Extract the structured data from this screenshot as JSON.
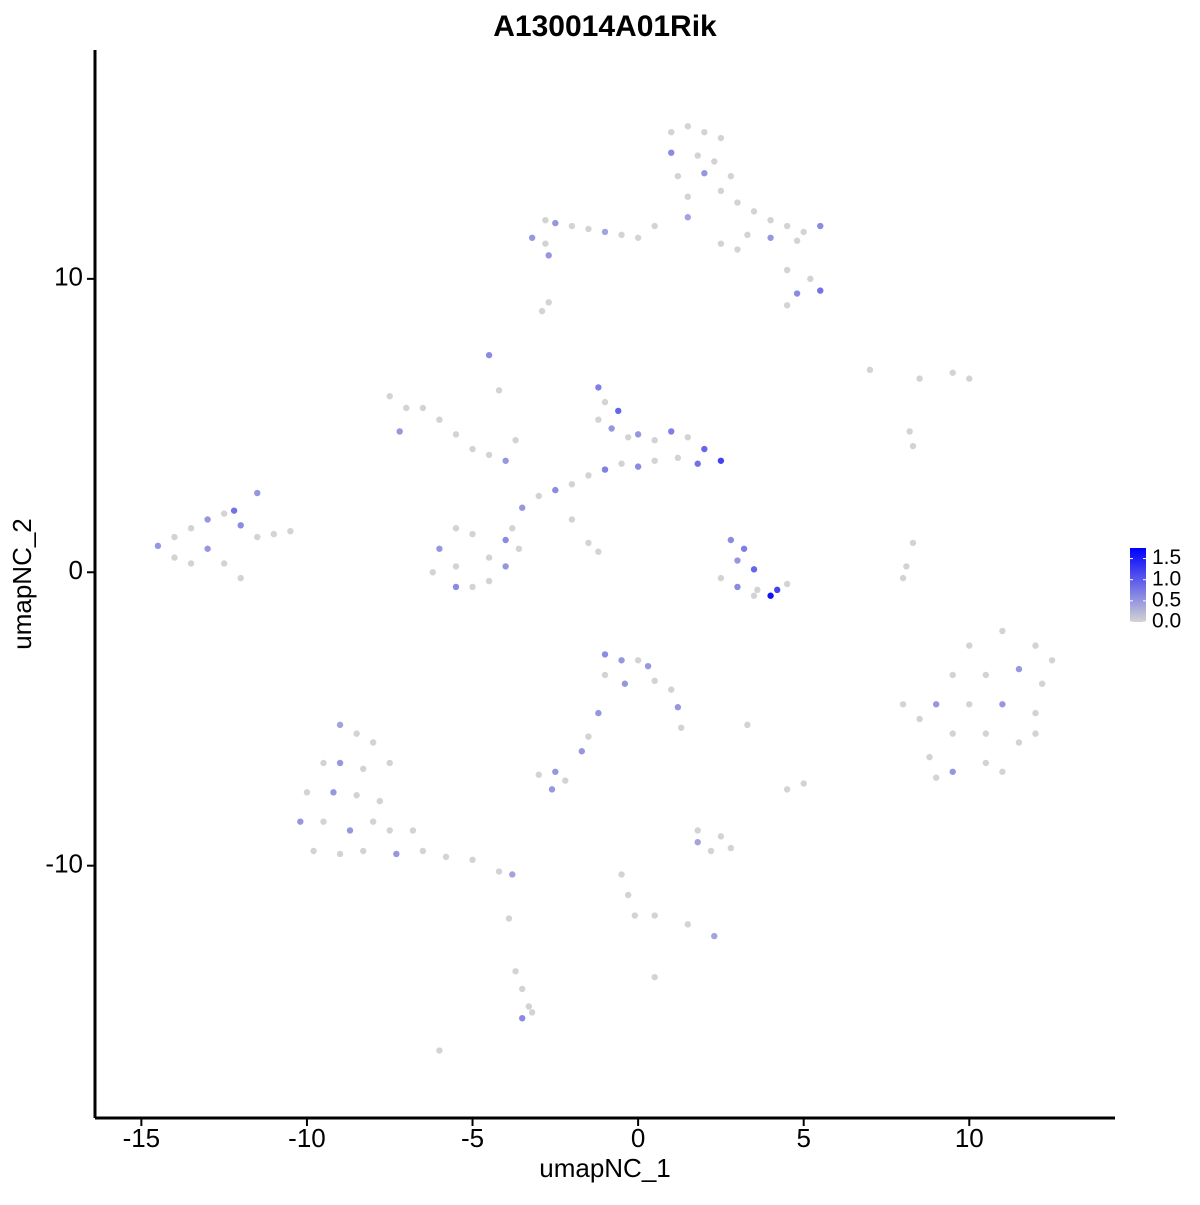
{
  "chart_data": {
    "type": "scatter",
    "title": "A130014A01Rik",
    "x_label": "umapNC_1",
    "y_label": "umapNC_2",
    "xlim": [
      -16.4,
      14.4
    ],
    "ylim": [
      -18.6,
      17.8
    ],
    "xticks": [
      -15,
      -10,
      -5,
      0,
      5,
      10
    ],
    "yticks": [
      -10,
      0,
      10
    ],
    "color_low": "#d3d3d3",
    "color_high": "#0000ff",
    "color_lim": [
      0,
      1.75
    ],
    "color_ticks": [
      {
        "value": 0,
        "label": "0.0"
      },
      {
        "value": 0.5,
        "label": "0.5"
      },
      {
        "value": 1,
        "label": "1.0"
      },
      {
        "value": 1.5,
        "label": "1.5"
      }
    ],
    "x": [
      1,
      1.5,
      2,
      2.5,
      1,
      1.8,
      2.3,
      1.2,
      2,
      2.8,
      1.5,
      2.5,
      3,
      3.5,
      4,
      4.5,
      5,
      5.5,
      4.8,
      4,
      3.3,
      3,
      2.5,
      4.5,
      5.2,
      5.5,
      4.8,
      4.5,
      0.5,
      1.5,
      -2.8,
      -2.5,
      -2,
      -1.5,
      -1,
      -0.5,
      0,
      -3.2,
      -2.8,
      -2.7,
      -2.7,
      -2.9,
      -1.2,
      -1,
      -0.6,
      -1.2,
      -0.8,
      -0.3,
      0,
      0.5,
      1,
      1.5,
      2,
      2.5,
      1.8,
      1.2,
      0.5,
      0,
      -0.5,
      -1,
      -1.5,
      -2,
      -2.5,
      -3,
      -3.5,
      -3.8,
      -4,
      -3.6,
      -4,
      -4.5,
      -5,
      -5.5,
      -6,
      -6.2,
      -5.5,
      -4.5,
      -5,
      -5.5,
      -7.5,
      -7,
      -6.5,
      -6,
      -5.5,
      -5,
      -4.5,
      -4,
      -7.2,
      -4.5,
      -4.2,
      -3.7,
      -2,
      -1.5,
      -1.2,
      2.8,
      3.2,
      3,
      3.5,
      2.5,
      3,
      3.6,
      4,
      4.2,
      3.5,
      4.5,
      8.3,
      8.1,
      8,
      10,
      11,
      12,
      12.5,
      9.5,
      10.5,
      11.5,
      12.2,
      9,
      10,
      11,
      12,
      8,
      8.5,
      9.5,
      10.5,
      11.5,
      12,
      8.8,
      9.5,
      10.5,
      11,
      9,
      -1,
      -0.5,
      0,
      0.3,
      -1,
      -0.4,
      0.5,
      1,
      1.2,
      1.3,
      -1.2,
      -1.5,
      -1.7,
      -2.5,
      -3,
      -2.2,
      -2.6,
      1.8,
      2.5,
      2.2,
      1.8,
      2.8,
      -0.5,
      -0.3,
      -0.1,
      0.5,
      1.5,
      2.3,
      5,
      4.5,
      3.3,
      -9,
      -8.5,
      -8,
      -9.5,
      -9,
      -8.3,
      -7.5,
      -10,
      -9.2,
      -8.5,
      -7.8,
      -10.2,
      -9.5,
      -8.7,
      -8,
      -7.5,
      -9.8,
      -9,
      -8.3,
      -7.3,
      -6.5,
      -5.8,
      -5,
      -4.2,
      -3.8,
      -6.8,
      -3.7,
      -3.5,
      -3.3,
      -3.5,
      -3.2,
      -3.9,
      -6,
      0.5,
      7,
      8.5,
      9.5,
      10,
      8.2,
      8.3,
      -14.5,
      -14,
      -13.5,
      -13,
      -12.5,
      -12,
      -11.5,
      -11,
      -10.5,
      -13.5,
      -13,
      -12.5,
      -12,
      -11.5,
      -12.2,
      -14
    ],
    "values": [
      15,
      15.2,
      15,
      14.8,
      14.3,
      14.2,
      14,
      13.5,
      13.6,
      13.5,
      12.8,
      13,
      12.6,
      12.3,
      12,
      11.8,
      11.6,
      11.8,
      11.3,
      11.4,
      11.5,
      11,
      11.2,
      10.3,
      10,
      9.6,
      9.5,
      9.1,
      11.8,
      12.1,
      12,
      11.9,
      11.8,
      11.7,
      11.6,
      11.5,
      11.4,
      11.4,
      11.2,
      10.8,
      9.2,
      8.9,
      6.3,
      5.8,
      5.5,
      5.2,
      4.9,
      4.6,
      4.7,
      4.5,
      4.8,
      4.6,
      4.2,
      3.8,
      3.7,
      3.9,
      3.8,
      3.6,
      3.7,
      3.5,
      3.3,
      3,
      2.8,
      2.6,
      2.2,
      1.5,
      1.1,
      0.8,
      0.2,
      -0.3,
      -0.5,
      0.2,
      0.8,
      0,
      -0.5,
      0.5,
      1.3,
      1.5,
      6,
      5.6,
      5.6,
      5.2,
      4.7,
      4.2,
      4,
      3.8,
      4.8,
      7.4,
      6.2,
      4.5,
      1.8,
      1,
      0.7,
      1.1,
      0.8,
      0.4,
      0.1,
      -0.2,
      -0.5,
      -0.6,
      -0.8,
      -0.6,
      -0.8,
      -0.4,
      1,
      0.2,
      -0.2,
      -2.5,
      -2,
      -2.5,
      -3,
      -3.5,
      -3.5,
      -3.3,
      -3.8,
      -4.5,
      -4.5,
      -4.5,
      -4.8,
      -4.5,
      -5,
      -5.5,
      -5.5,
      -5.8,
      -5.5,
      -6.3,
      -6.8,
      -6.5,
      -6.8,
      -7,
      -2.8,
      -3,
      -3,
      -3.2,
      -3.5,
      -3.8,
      -3.7,
      -4,
      -4.6,
      -5.3,
      -4.8,
      -5.6,
      -6.1,
      -6.8,
      -6.9,
      -7.1,
      -7.4,
      -8.8,
      -9,
      -9.5,
      -9.2,
      -9.4,
      -10.3,
      -11,
      -11.7,
      -11.7,
      -12,
      -12.4,
      -7.2,
      -7.4,
      -5.2,
      -5.2,
      -5.5,
      -5.8,
      -6.5,
      -6.5,
      -6.7,
      -6.5,
      -7.5,
      -7.5,
      -7.6,
      -7.8,
      -8.5,
      -8.5,
      -8.8,
      -8.5,
      -8.8,
      -9.5,
      -9.6,
      -9.5,
      -9.6,
      -9.5,
      -9.7,
      -9.8,
      -10.2,
      -10.3,
      -8.8,
      -13.6,
      -14.2,
      -14.8,
      -15.2,
      -15,
      -11.8,
      -16.3,
      -13.8,
      6.9,
      6.6,
      6.8,
      6.6,
      4.8,
      4.3,
      0.9,
      0.5,
      1.5,
      1.8,
      2,
      1.6,
      1.2,
      1.3,
      1.4,
      0.3,
      0.8,
      0.3,
      -0.2,
      2.7,
      2.1,
      1.2
    ],
    "expression": [
      0,
      0,
      0,
      0,
      0.6,
      0,
      0,
      0,
      0.5,
      0,
      0,
      0,
      0,
      0,
      0,
      0,
      0,
      0.6,
      0,
      0.5,
      0,
      0,
      0,
      0,
      0,
      0.8,
      0.6,
      0,
      0,
      0.4,
      0,
      0.5,
      0,
      0,
      0.4,
      0,
      0,
      0.5,
      0,
      0.5,
      0,
      0,
      0.7,
      0,
      0.9,
      0,
      0.5,
      0,
      0.5,
      0,
      0.7,
      0,
      0.9,
      1.2,
      0.8,
      0,
      0,
      0.6,
      0,
      0.7,
      0,
      0,
      0.6,
      0,
      0.5,
      0,
      0.6,
      0,
      0.5,
      0,
      0,
      0,
      0.5,
      0,
      0.6,
      0,
      0,
      0,
      0,
      0,
      0,
      0,
      0,
      0,
      0,
      0.5,
      0.5,
      0.6,
      0,
      0,
      0,
      0,
      0,
      0.6,
      0.7,
      0.5,
      0.9,
      0,
      0.6,
      0,
      1.6,
      1.2,
      0,
      0,
      0,
      0,
      0,
      0,
      0,
      0,
      0,
      0,
      0,
      0.5,
      0,
      0.5,
      0,
      0.5,
      0,
      0,
      0,
      0,
      0,
      0,
      0,
      0,
      0.5,
      0,
      0,
      0,
      0.6,
      0.5,
      0,
      0.5,
      0,
      0.5,
      0,
      0,
      0.5,
      0,
      0.5,
      0,
      0.5,
      0.5,
      0,
      0,
      0.5,
      0,
      0,
      0,
      0.4,
      0,
      0,
      0,
      0,
      0,
      0,
      0.4,
      0,
      0,
      0,
      0.4,
      0,
      0,
      0,
      0.5,
      0,
      0,
      0,
      0.5,
      0,
      0,
      0.5,
      0,
      0.5,
      0,
      0,
      0,
      0,
      0,
      0.5,
      0,
      0,
      0,
      0,
      0.4,
      0,
      0,
      0,
      0,
      0.6,
      0,
      0,
      0,
      0,
      0,
      0,
      0,
      0,
      0,
      0,
      0.5,
      0,
      0,
      0.5,
      0,
      0.6,
      0,
      0,
      0,
      0,
      0.5,
      0,
      0,
      0.5,
      0.8,
      0
    ]
  }
}
